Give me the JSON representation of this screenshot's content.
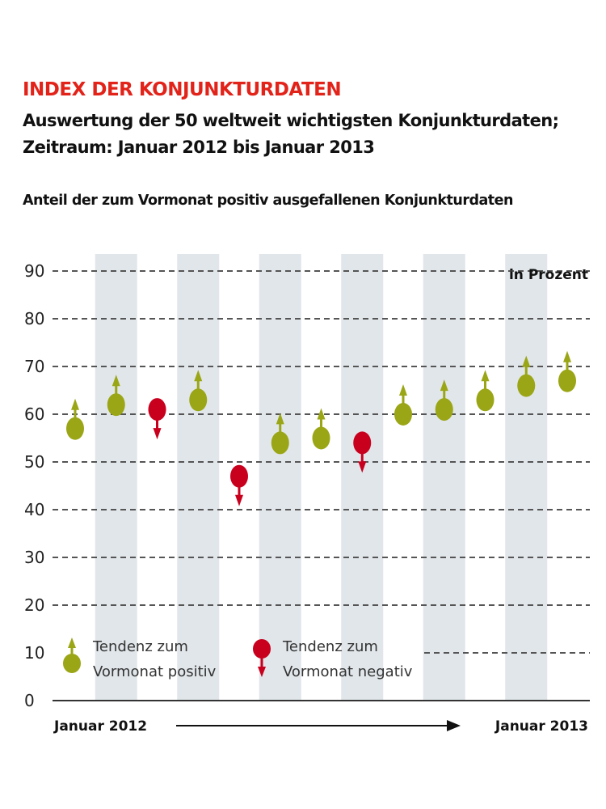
{
  "title": "INDEX DER KONJUNKTURDATEN",
  "subtitle_line1": "Auswertung der 50 weltweit wichtigsten Konjunkturdaten;",
  "subtitle_line2": "Zeitraum: Januar 2012 bis Januar 2013",
  "description": "Anteil der zum Vormonat positiv ausgefallenen Konjunkturdaten",
  "colors": {
    "positive": "#9aa615",
    "negative": "#c8001e",
    "title": "#e2231a",
    "band": "#e1e6ea"
  },
  "chart_data": {
    "type": "scatter",
    "unit_label": "in Prozent",
    "x_start_label": "Januar 2012",
    "x_end_label": "Januar 2013",
    "ylim": [
      0,
      90
    ],
    "yticks": [
      0,
      10,
      20,
      30,
      40,
      50,
      60,
      70,
      80,
      90
    ],
    "grid": true,
    "values": [
      57,
      62,
      61,
      63,
      47,
      54,
      55,
      54,
      60,
      61,
      63,
      66,
      67
    ],
    "tendency": [
      "up",
      "up",
      "down",
      "up",
      "down",
      "up",
      "up",
      "down",
      "up",
      "up",
      "up",
      "up",
      "up"
    ],
    "legend": {
      "positive_line1": "Tendenz zum",
      "positive_line2": "Vormonat positiv",
      "negative_line1": "Tendenz zum",
      "negative_line2": "Vormonat negativ",
      "placement": "bottom-left"
    }
  }
}
